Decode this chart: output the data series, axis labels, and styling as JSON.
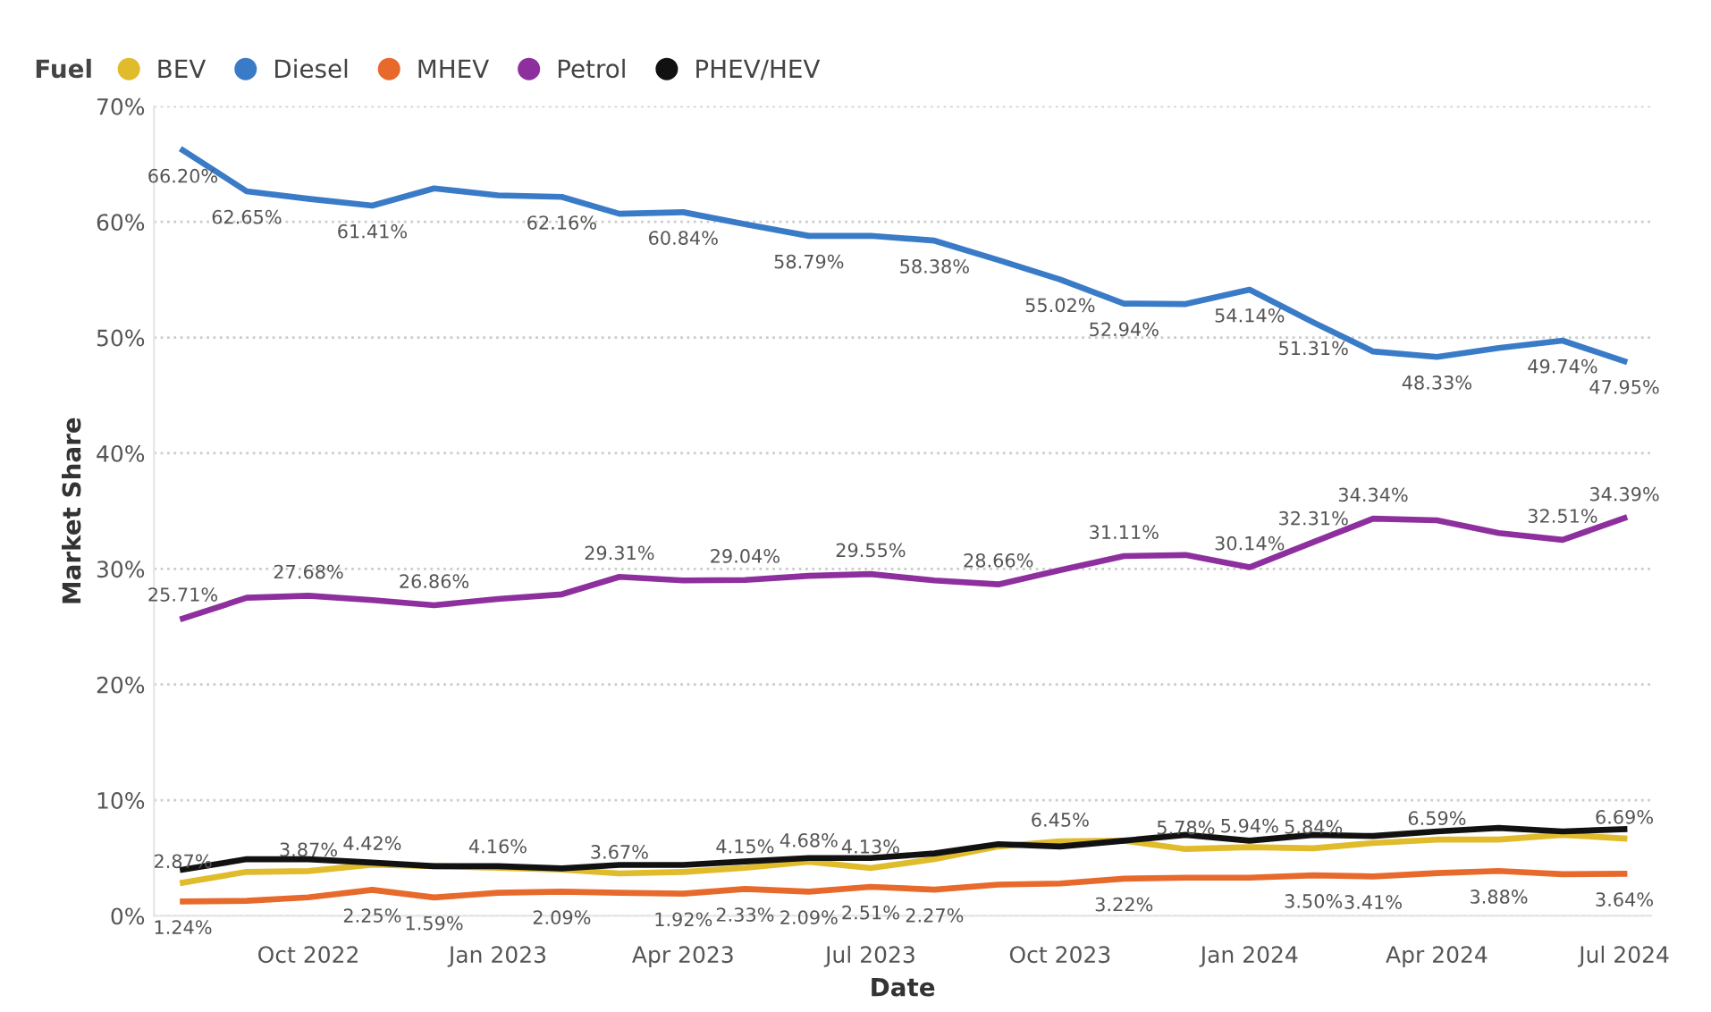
{
  "chart_data": {
    "type": "line",
    "xlabel": "Date",
    "ylabel": "Market Share",
    "legend_title": "Fuel",
    "legend": "top left",
    "grid": "y",
    "marker": "none",
    "line_style": "solid",
    "x": [
      "2022-08",
      "2022-09",
      "2022-10",
      "2022-11",
      "2022-12",
      "2023-01",
      "2023-02",
      "2023-03",
      "2023-04",
      "2023-05",
      "2023-06",
      "2023-07",
      "2023-08",
      "2023-09",
      "2023-10",
      "2023-11",
      "2023-12",
      "2024-01",
      "2024-02",
      "2024-03",
      "2024-04",
      "2024-05",
      "2024-06",
      "2024-07"
    ],
    "xlim": [
      "2022-07-18",
      "2024-07-14"
    ],
    "xticks": [
      {
        "value": "2022-10",
        "label": "Oct 2022"
      },
      {
        "value": "2023-01",
        "label": "Jan 2023"
      },
      {
        "value": "2023-04",
        "label": "Apr 2023"
      },
      {
        "value": "2023-07",
        "label": "Jul 2023"
      },
      {
        "value": "2023-10",
        "label": "Oct 2023"
      },
      {
        "value": "2024-01",
        "label": "Jan 2024"
      },
      {
        "value": "2024-04",
        "label": "Apr 2024"
      },
      {
        "value": "2024-07",
        "label": "Jul 2024"
      }
    ],
    "ylim": [
      0,
      70
    ],
    "yticks": [
      {
        "value": 0,
        "label": "0%"
      },
      {
        "value": 10,
        "label": "10%"
      },
      {
        "value": 20,
        "label": "20%"
      },
      {
        "value": 30,
        "label": "30%"
      },
      {
        "value": 40,
        "label": "40%"
      },
      {
        "value": 50,
        "label": "50%"
      },
      {
        "value": 60,
        "label": "60%"
      },
      {
        "value": 70,
        "label": "70%"
      }
    ],
    "series": [
      {
        "name": "BEV",
        "color": "#e0bb2c",
        "values": [
          2.87,
          3.8,
          3.87,
          4.42,
          4.3,
          4.16,
          4.0,
          3.67,
          3.8,
          4.15,
          4.68,
          4.13,
          4.9,
          6.0,
          6.45,
          6.5,
          5.78,
          5.94,
          5.84,
          6.3,
          6.59,
          6.6,
          7.0,
          6.69
        ],
        "value_labels": [
          "2.87%",
          null,
          "3.87%",
          "4.42%",
          null,
          "4.16%",
          null,
          "3.67%",
          null,
          "4.15%",
          "4.68%",
          "4.13%",
          null,
          null,
          "6.45%",
          null,
          "5.78%",
          "5.94%",
          "5.84%",
          null,
          "6.59%",
          null,
          null,
          "6.69%"
        ]
      },
      {
        "name": "Diesel",
        "color": "#3a7bc8",
        "values": [
          66.2,
          62.65,
          62.0,
          61.41,
          62.9,
          62.3,
          62.16,
          60.7,
          60.84,
          59.8,
          58.79,
          58.8,
          58.38,
          56.7,
          55.02,
          52.94,
          52.9,
          54.14,
          51.31,
          48.8,
          48.33,
          49.1,
          49.74,
          47.95
        ],
        "value_labels": [
          "66.20%",
          "62.65%",
          null,
          "61.41%",
          null,
          null,
          "62.16%",
          null,
          "60.84%",
          null,
          "58.79%",
          null,
          "58.38%",
          null,
          "55.02%",
          "52.94%",
          null,
          "54.14%",
          "51.31%",
          null,
          "48.33%",
          null,
          "49.74%",
          "47.95%"
        ]
      },
      {
        "name": "MHEV",
        "color": "#e8692c",
        "values": [
          1.24,
          1.3,
          1.6,
          2.25,
          1.59,
          2.0,
          2.09,
          2.0,
          1.92,
          2.33,
          2.09,
          2.51,
          2.27,
          2.7,
          2.8,
          3.22,
          3.3,
          3.3,
          3.5,
          3.41,
          3.7,
          3.88,
          3.6,
          3.64
        ],
        "value_labels": [
          "1.24%",
          null,
          null,
          "2.25%",
          "1.59%",
          null,
          "2.09%",
          null,
          "1.92%",
          "2.33%",
          "2.09%",
          "2.51%",
          "2.27%",
          null,
          null,
          "3.22%",
          null,
          null,
          "3.50%",
          "3.41%",
          null,
          "3.88%",
          null,
          "3.64%"
        ]
      },
      {
        "name": "Petrol",
        "color": "#8e2f9e",
        "values": [
          25.71,
          27.5,
          27.68,
          27.3,
          26.86,
          27.4,
          27.8,
          29.31,
          29.0,
          29.04,
          29.4,
          29.55,
          29.0,
          28.66,
          29.9,
          31.11,
          31.2,
          30.14,
          32.31,
          34.34,
          34.2,
          33.1,
          32.51,
          34.39
        ],
        "value_labels": [
          "25.71%",
          null,
          "27.68%",
          null,
          "26.86%",
          null,
          null,
          "29.31%",
          null,
          "29.04%",
          null,
          "29.55%",
          null,
          "28.66%",
          null,
          "31.11%",
          null,
          "30.14%",
          "32.31%",
          "34.34%",
          null,
          null,
          "32.51%",
          "34.39%"
        ]
      },
      {
        "name": "PHEV/HEV",
        "color": "#111111",
        "values": [
          4.0,
          4.9,
          4.9,
          4.6,
          4.3,
          4.3,
          4.1,
          4.4,
          4.4,
          4.7,
          5.0,
          5.0,
          5.4,
          6.2,
          6.0,
          6.5,
          7.0,
          6.5,
          7.0,
          6.9,
          7.3,
          7.6,
          7.3,
          7.5
        ]
      }
    ]
  }
}
